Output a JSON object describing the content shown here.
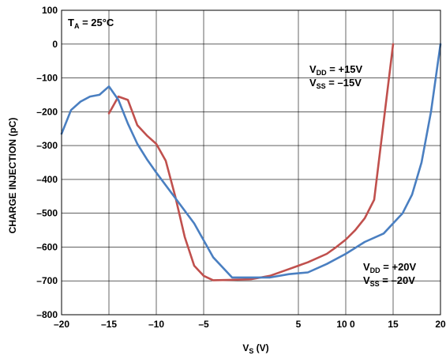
{
  "chart_data": {
    "type": "line",
    "xlabel": "V",
    "xlabel_sub": "S",
    "xlabel_unit": " (V)",
    "ylabel": "CHARGE INJECTION (pC)",
    "xlim": [
      -20,
      20
    ],
    "ylim": [
      -800,
      100
    ],
    "grid": true,
    "x_tick_labels": [
      "–20",
      "–15",
      "–10",
      "–5",
      "5",
      "10 0",
      "15",
      "20"
    ],
    "x_tick_values": [
      -20,
      -15,
      -10,
      -5,
      5,
      10,
      15,
      20
    ],
    "y_tick_labels": [
      "100",
      "0",
      "–100",
      "–200",
      "–300",
      "–400",
      "–500",
      "–600",
      "–700",
      "–800"
    ],
    "y_tick_values": [
      100,
      0,
      -100,
      -200,
      -300,
      -400,
      -500,
      -600,
      -700,
      -800
    ],
    "annotations": [
      {
        "main": "T",
        "sub": "A",
        "rest": " = 25°C"
      },
      {
        "main": "V",
        "sub": "DD",
        "rest": " = +15V"
      },
      {
        "main": "V",
        "sub": "SS",
        "rest": " = –15V"
      },
      {
        "main": "V",
        "sub": "DD",
        "rest": " = +20V"
      },
      {
        "main": "V",
        "sub": "SS",
        "rest": " = –20V"
      }
    ],
    "series": [
      {
        "color": "#c0504d",
        "x": [
          -15,
          -14,
          -13,
          -12,
          -11,
          -10,
          -9,
          -8,
          -7,
          -6,
          -5,
          -4,
          -2,
          0,
          2,
          4,
          6,
          8,
          9,
          10,
          11,
          12,
          13,
          14,
          15
        ],
        "y": [
          -205,
          -155,
          -165,
          -240,
          -270,
          -295,
          -345,
          -450,
          -570,
          -655,
          -685,
          -698,
          -697,
          -695,
          -685,
          -665,
          -645,
          -620,
          -600,
          -578,
          -550,
          -515,
          -460,
          -230,
          0
        ]
      },
      {
        "color": "#4a7fc1",
        "x": [
          -20,
          -19,
          -18,
          -17,
          -16,
          -15,
          -14,
          -13,
          -12,
          -11,
          -10,
          -8,
          -6,
          -4,
          -2,
          0,
          2,
          4,
          6,
          8,
          10,
          12,
          14,
          16,
          17,
          18,
          19,
          20
        ],
        "y": [
          -265,
          -195,
          -170,
          -155,
          -150,
          -125,
          -165,
          -235,
          -295,
          -340,
          -380,
          -455,
          -530,
          -630,
          -690,
          -690,
          -690,
          -680,
          -675,
          -650,
          -620,
          -585,
          -560,
          -500,
          -445,
          -350,
          -200,
          0
        ]
      }
    ]
  }
}
